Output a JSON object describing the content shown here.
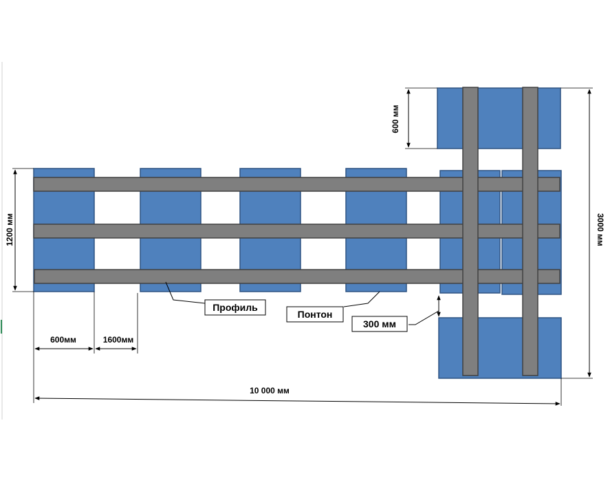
{
  "callouts": {
    "profile": "Профиль",
    "pontoon": "Понтон",
    "gap": "300 мм"
  },
  "dimensions": {
    "pontoon_width": "600мм",
    "spacing": "1600мм",
    "total_length": "10 000 мм",
    "width": "1200 мм",
    "side_pontoon": "600 мм",
    "total_width": "3000 мм"
  },
  "colors": {
    "pontoon": "#4f81bd",
    "profile": "#7f7f7f"
  }
}
